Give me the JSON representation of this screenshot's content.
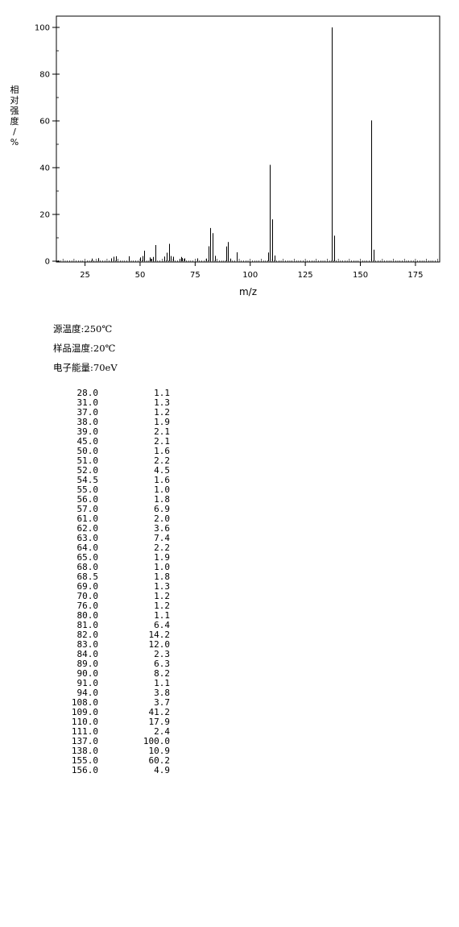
{
  "chart_data": {
    "type": "bar",
    "ylabel": "相对强度/%",
    "xlabel": "m/z",
    "xlim": [
      12,
      186
    ],
    "ylim": [
      0,
      100
    ],
    "x_ticks": [
      25,
      50,
      75,
      100,
      125,
      150,
      175
    ],
    "y_ticks": [
      0,
      20,
      40,
      60,
      80,
      100
    ],
    "grid": false,
    "x": [
      28.0,
      31.0,
      37.0,
      38.0,
      39.0,
      45.0,
      50.0,
      51.0,
      52.0,
      54.5,
      55.0,
      56.0,
      57.0,
      61.0,
      62.0,
      63.0,
      64.0,
      65.0,
      68.0,
      68.5,
      69.0,
      70.0,
      76.0,
      80.0,
      81.0,
      82.0,
      83.0,
      84.0,
      89.0,
      90.0,
      91.0,
      94.0,
      108.0,
      109.0,
      110.0,
      111.0,
      137.0,
      138.0,
      155.0,
      156.0
    ],
    "values": [
      1.1,
      1.3,
      1.2,
      1.9,
      2.1,
      2.1,
      1.6,
      2.2,
      4.5,
      1.6,
      1.0,
      1.8,
      6.9,
      2.0,
      3.6,
      7.4,
      2.2,
      1.9,
      1.0,
      1.8,
      1.3,
      1.2,
      1.2,
      1.1,
      6.4,
      14.2,
      12.0,
      2.3,
      6.3,
      8.2,
      1.1,
      3.8,
      3.7,
      41.2,
      17.9,
      2.4,
      100.0,
      10.9,
      60.2,
      4.9
    ]
  },
  "conditions": {
    "source_temp": "源温度:250℃",
    "sample_temp": "样品温度:20℃",
    "electron_energy": "电子能量:70eV"
  },
  "peaks": [
    {
      "mz": "28.0",
      "intensity": "1.1"
    },
    {
      "mz": "31.0",
      "intensity": "1.3"
    },
    {
      "mz": "37.0",
      "intensity": "1.2"
    },
    {
      "mz": "38.0",
      "intensity": "1.9"
    },
    {
      "mz": "39.0",
      "intensity": "2.1"
    },
    {
      "mz": "45.0",
      "intensity": "2.1"
    },
    {
      "mz": "50.0",
      "intensity": "1.6"
    },
    {
      "mz": "51.0",
      "intensity": "2.2"
    },
    {
      "mz": "52.0",
      "intensity": "4.5"
    },
    {
      "mz": "54.5",
      "intensity": "1.6"
    },
    {
      "mz": "55.0",
      "intensity": "1.0"
    },
    {
      "mz": "56.0",
      "intensity": "1.8"
    },
    {
      "mz": "57.0",
      "intensity": "6.9"
    },
    {
      "mz": "61.0",
      "intensity": "2.0"
    },
    {
      "mz": "62.0",
      "intensity": "3.6"
    },
    {
      "mz": "63.0",
      "intensity": "7.4"
    },
    {
      "mz": "64.0",
      "intensity": "2.2"
    },
    {
      "mz": "65.0",
      "intensity": "1.9"
    },
    {
      "mz": "68.0",
      "intensity": "1.0"
    },
    {
      "mz": "68.5",
      "intensity": "1.8"
    },
    {
      "mz": "69.0",
      "intensity": "1.3"
    },
    {
      "mz": "70.0",
      "intensity": "1.2"
    },
    {
      "mz": "76.0",
      "intensity": "1.2"
    },
    {
      "mz": "80.0",
      "intensity": "1.1"
    },
    {
      "mz": "81.0",
      "intensity": "6.4"
    },
    {
      "mz": "82.0",
      "intensity": "14.2"
    },
    {
      "mz": "83.0",
      "intensity": "12.0"
    },
    {
      "mz": "84.0",
      "intensity": "2.3"
    },
    {
      "mz": "89.0",
      "intensity": "6.3"
    },
    {
      "mz": "90.0",
      "intensity": "8.2"
    },
    {
      "mz": "91.0",
      "intensity": "1.1"
    },
    {
      "mz": "94.0",
      "intensity": "3.8"
    },
    {
      "mz": "108.0",
      "intensity": "3.7"
    },
    {
      "mz": "109.0",
      "intensity": "41.2"
    },
    {
      "mz": "110.0",
      "intensity": "17.9"
    },
    {
      "mz": "111.0",
      "intensity": "2.4"
    },
    {
      "mz": "137.0",
      "intensity": "100.0"
    },
    {
      "mz": "138.0",
      "intensity": "10.9"
    },
    {
      "mz": "155.0",
      "intensity": "60.2"
    },
    {
      "mz": "156.0",
      "intensity": "4.9"
    }
  ]
}
